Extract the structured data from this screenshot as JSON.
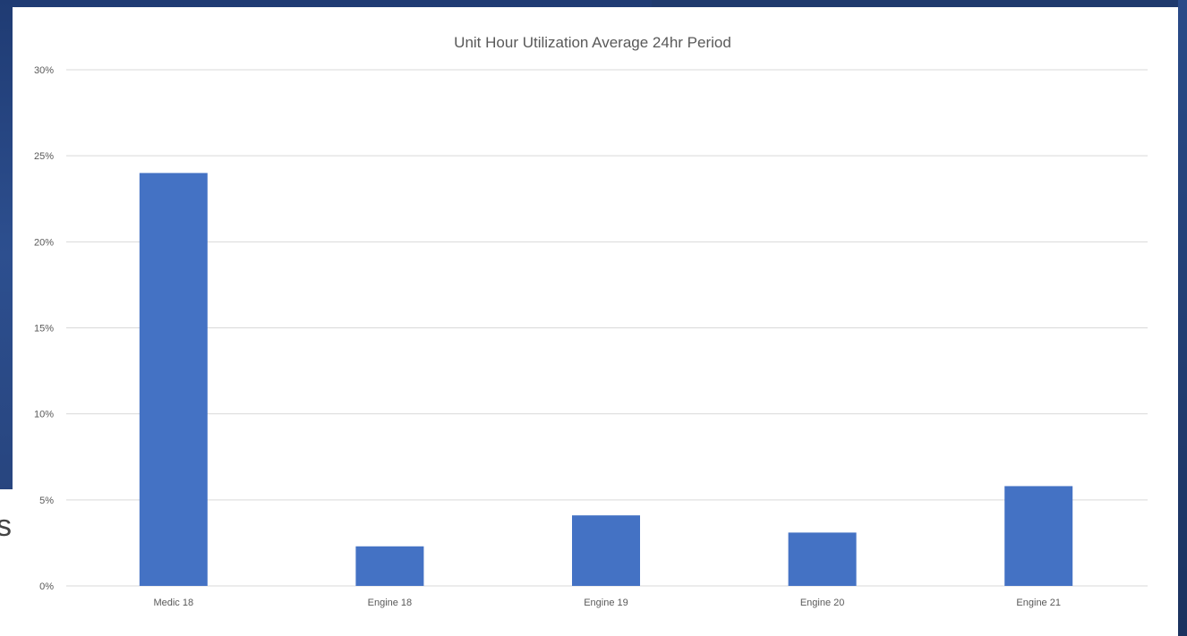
{
  "background_glyph": "s",
  "chart_data": {
    "type": "bar",
    "title": "Unit Hour Utilization Average 24hr Period",
    "xlabel": "",
    "ylabel": "",
    "categories": [
      "Medic 18",
      "Engine 18",
      "Engine 19",
      "Engine 20",
      "Engine 21"
    ],
    "values": [
      24.0,
      2.3,
      4.1,
      3.1,
      5.8
    ],
    "y_unit": "%",
    "ylim": [
      0,
      30
    ],
    "y_ticks": [
      0,
      5,
      10,
      15,
      20,
      25,
      30
    ],
    "y_tick_labels": [
      "0%",
      "5%",
      "10%",
      "15%",
      "20%",
      "25%",
      "30%"
    ],
    "grid": true,
    "legend": "none",
    "bar_color": "#4472c4"
  }
}
